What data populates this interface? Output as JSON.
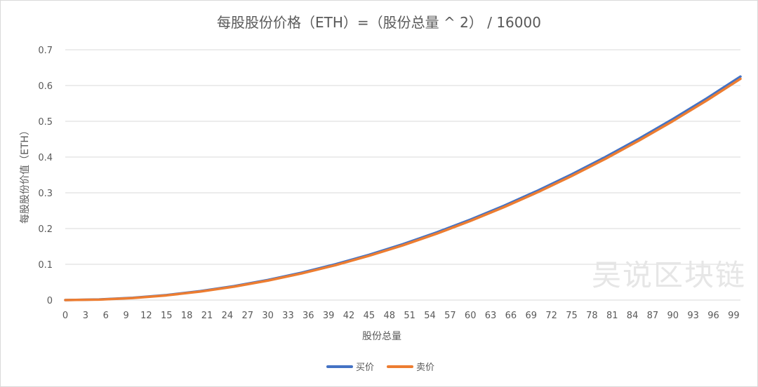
{
  "chart_data": {
    "type": "line",
    "title": "每股股份价格（ETH）=（股份总量 ^ 2） / 16000",
    "xlabel": "股份总量",
    "ylabel": "每股股份价值（ETH）",
    "xlim": [
      0,
      100
    ],
    "ylim": [
      0,
      0.7
    ],
    "yticks": [
      "0",
      "0.1",
      "0.2",
      "0.3",
      "0.4",
      "0.5",
      "0.6",
      "0.7"
    ],
    "xticks": [
      "0",
      "3",
      "6",
      "9",
      "12",
      "15",
      "18",
      "21",
      "24",
      "27",
      "30",
      "33",
      "36",
      "39",
      "42",
      "45",
      "48",
      "51",
      "54",
      "57",
      "60",
      "63",
      "66",
      "69",
      "72",
      "75",
      "78",
      "81",
      "84",
      "87",
      "90",
      "93",
      "96",
      "99"
    ],
    "grid": true,
    "legend_position": "bottom",
    "x": [
      0,
      5,
      10,
      15,
      20,
      25,
      30,
      35,
      40,
      45,
      50,
      55,
      60,
      65,
      70,
      75,
      80,
      85,
      90,
      95,
      100
    ],
    "series": [
      {
        "name": "买价",
        "color": "#4472C4",
        "values": [
          0,
          0.0016,
          0.0063,
          0.0141,
          0.0251,
          0.0391,
          0.0563,
          0.0766,
          0.1001,
          0.1266,
          0.1563,
          0.1891,
          0.2251,
          0.2641,
          0.3063,
          0.3516,
          0.4001,
          0.4516,
          0.5063,
          0.5641,
          0.6251
        ]
      },
      {
        "name": "卖价",
        "color": "#ED7D31",
        "values": [
          0,
          0.0013,
          0.0056,
          0.0131,
          0.0238,
          0.0375,
          0.0544,
          0.0744,
          0.0975,
          0.1238,
          0.1531,
          0.1856,
          0.2213,
          0.26,
          0.3019,
          0.3469,
          0.395,
          0.4463,
          0.5006,
          0.5581,
          0.6188
        ]
      }
    ]
  },
  "watermark": "吴说区块链"
}
